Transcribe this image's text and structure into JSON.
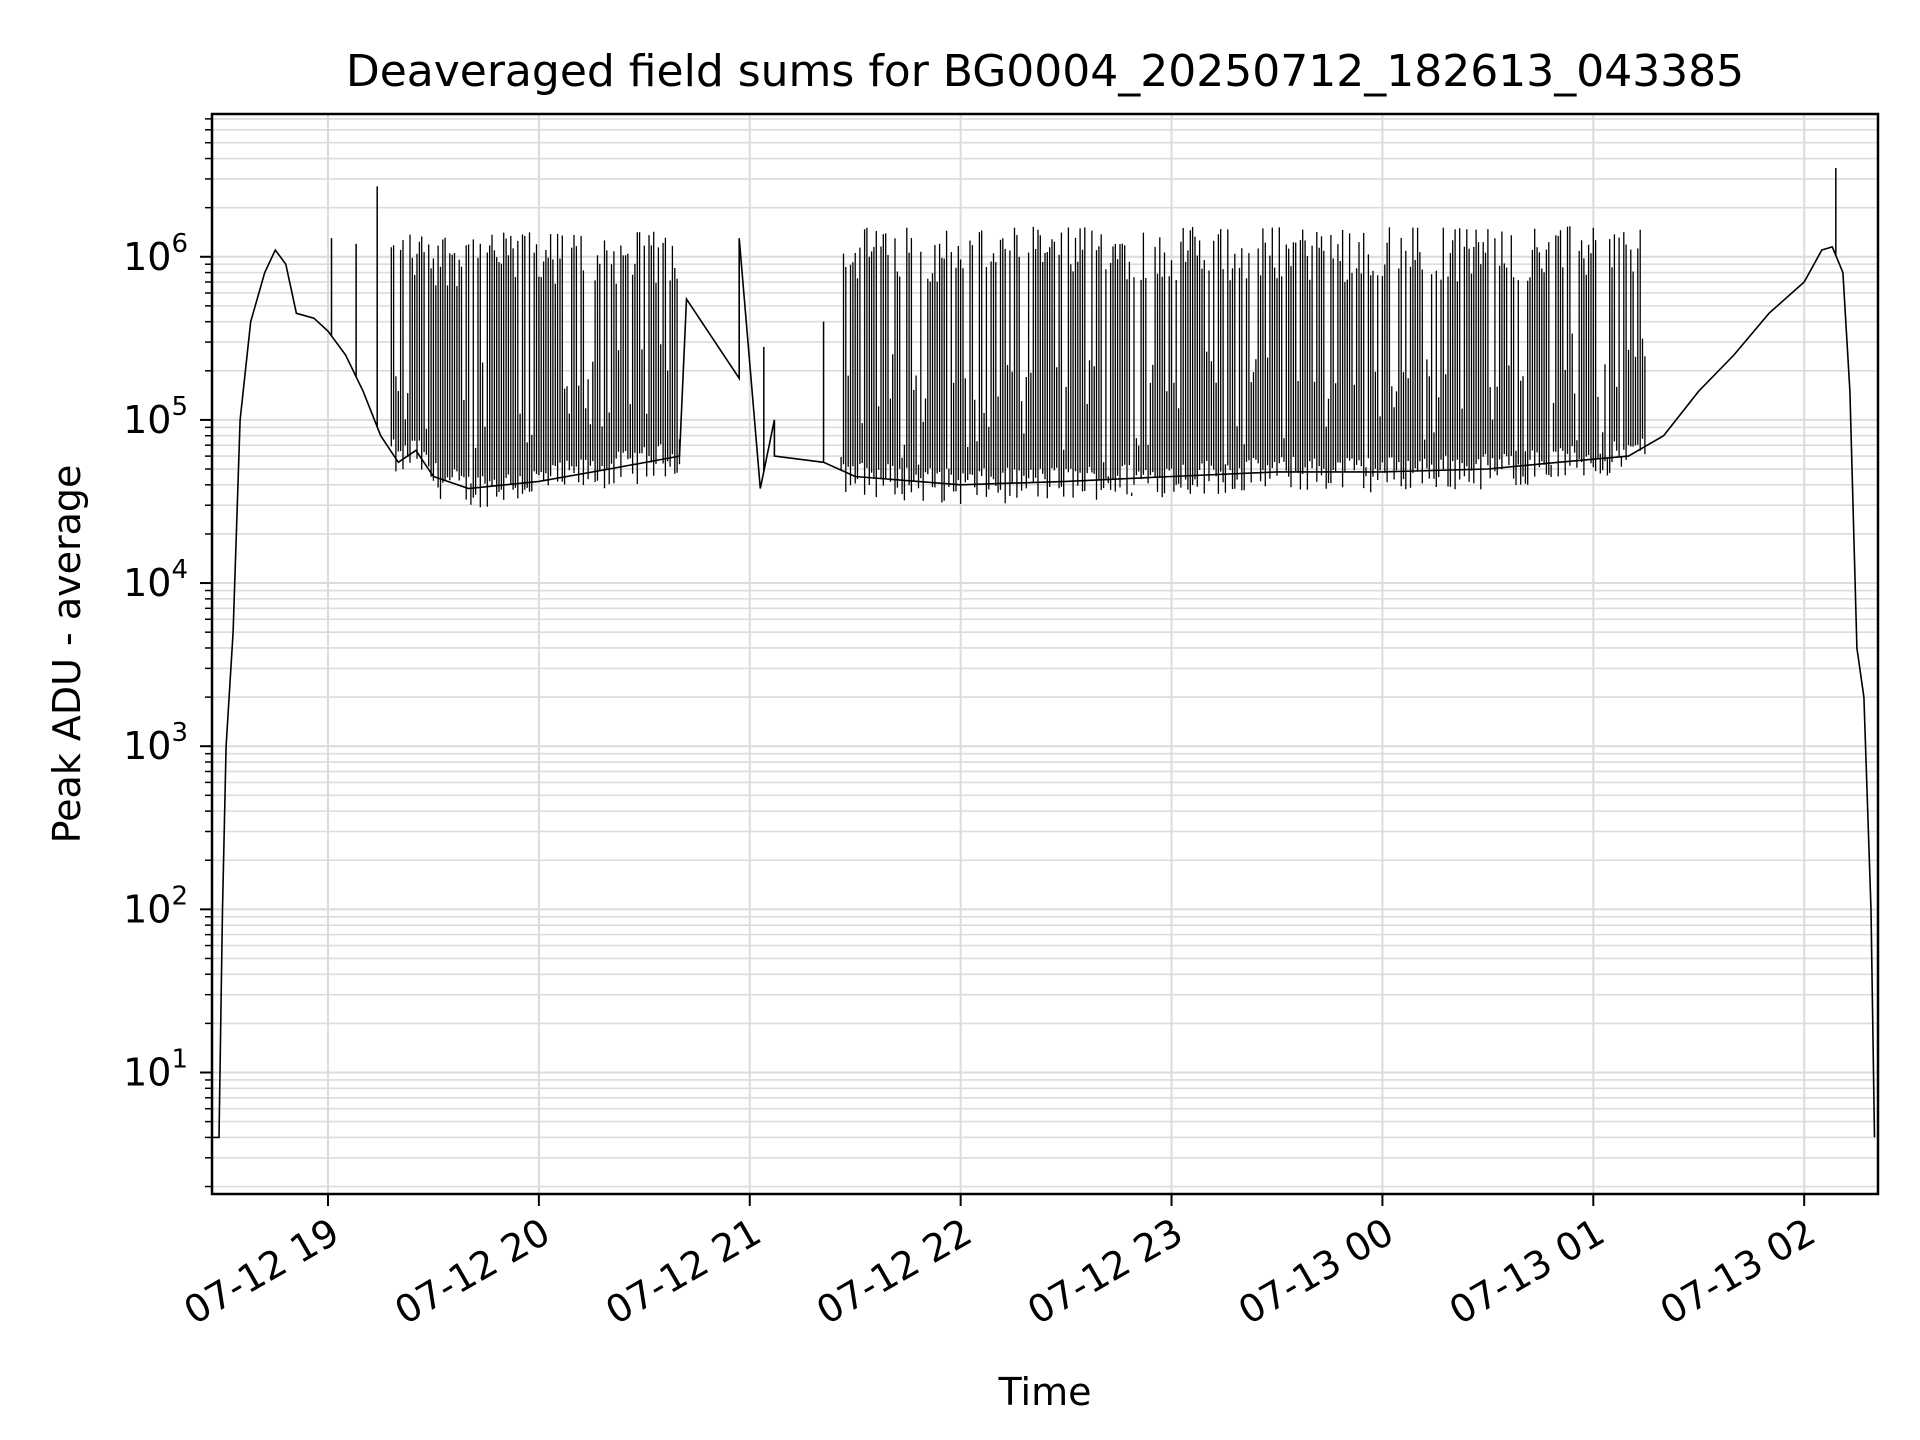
{
  "chart_data": {
    "type": "line",
    "title": "Deaveraged field sums for BG0004_20250712_182613_043385",
    "xlabel": "Time",
    "ylabel": "Peak ADU - average",
    "yscale": "log",
    "grid": true,
    "line_color": "#000000",
    "x_ticks": [
      "2025-07-12 19:00",
      "2025-07-12 20:00",
      "2025-07-12 21:00",
      "2025-07-12 22:00",
      "2025-07-12 23:00",
      "2025-07-13 00:00",
      "2025-07-13 01:00",
      "2025-07-13 02:00"
    ],
    "x_tick_labels": [
      "07-12 19",
      "07-12 20",
      "07-12 21",
      "07-12 22",
      "07-12 23",
      "07-13 00",
      "07-13 01",
      "07-13 02"
    ],
    "y_ticks": [
      {
        "base": "10",
        "exp": "1",
        "value": 10
      },
      {
        "base": "10",
        "exp": "2",
        "value": 100
      },
      {
        "base": "10",
        "exp": "3",
        "value": 1000
      },
      {
        "base": "10",
        "exp": "4",
        "value": 10000
      },
      {
        "base": "10",
        "exp": "5",
        "value": 100000
      },
      {
        "base": "10",
        "exp": "6",
        "value": 1000000
      }
    ],
    "xlim": [
      "2025-07-12 18:27",
      "2025-07-13 02:21"
    ],
    "ylim": [
      1.8,
      7500000
    ],
    "series": [
      {
        "baseline": [
          [
            "2025-07-12 18:27",
            4
          ],
          [
            "2025-07-12 18:29",
            4
          ],
          [
            "2025-07-12 18:30",
            100
          ],
          [
            "2025-07-12 18:31",
            1000
          ],
          [
            "2025-07-12 18:33",
            5000
          ],
          [
            "2025-07-12 18:35",
            100000
          ],
          [
            "2025-07-12 18:38",
            400000
          ],
          [
            "2025-07-12 18:42",
            800000
          ],
          [
            "2025-07-12 18:45",
            1100000
          ],
          [
            "2025-07-12 18:48",
            900000
          ],
          [
            "2025-07-12 18:51",
            450000
          ],
          [
            "2025-07-12 18:56",
            420000
          ],
          [
            "2025-07-12 19:00",
            350000
          ],
          [
            "2025-07-12 19:05",
            250000
          ],
          [
            "2025-07-12 19:10",
            150000
          ],
          [
            "2025-07-12 19:15",
            80000
          ],
          [
            "2025-07-12 19:20",
            55000
          ],
          [
            "2025-07-12 19:25",
            65000
          ],
          [
            "2025-07-12 19:30",
            45000
          ],
          [
            "2025-07-12 19:40",
            38000
          ],
          [
            "2025-07-12 20:00",
            42000
          ],
          [
            "2025-07-12 20:20",
            50000
          ],
          [
            "2025-07-12 20:40",
            60000
          ],
          [
            "2025-07-12 20:42",
            550000
          ],
          [
            "2025-07-12 20:57",
            180000
          ],
          [
            "2025-07-12 20:57",
            1300000
          ],
          [
            "2025-07-12 21:03",
            38000
          ],
          [
            "2025-07-12 21:07",
            100000
          ],
          [
            "2025-07-12 21:07",
            60000
          ],
          [
            "2025-07-12 21:21",
            55000
          ],
          [
            "2025-07-12 21:30",
            45000
          ],
          [
            "2025-07-12 22:00",
            40000
          ],
          [
            "2025-07-12 22:30",
            42000
          ],
          [
            "2025-07-12 23:00",
            45000
          ],
          [
            "2025-07-12 23:30",
            48000
          ],
          [
            "2025-07-13 00:00",
            48000
          ],
          [
            "2025-07-13 00:30",
            50000
          ],
          [
            "2025-07-13 00:50",
            55000
          ],
          [
            "2025-07-13 01:10",
            60000
          ],
          [
            "2025-07-13 01:20",
            80000
          ],
          [
            "2025-07-13 01:30",
            150000
          ],
          [
            "2025-07-13 01:40",
            250000
          ],
          [
            "2025-07-13 01:50",
            450000
          ],
          [
            "2025-07-13 02:00",
            700000
          ],
          [
            "2025-07-13 02:05",
            1100000
          ],
          [
            "2025-07-13 02:08",
            1150000
          ],
          [
            "2025-07-13 02:11",
            800000
          ],
          [
            "2025-07-13 02:13",
            150000
          ],
          [
            "2025-07-13 02:15",
            4000
          ],
          [
            "2025-07-13 02:17",
            2000
          ],
          [
            "2025-07-13 02:19",
            100
          ],
          [
            "2025-07-13 02:20",
            4
          ]
        ],
        "burst_segments": [
          {
            "from": "2025-07-12 19:18",
            "to": "2025-07-12 20:40",
            "peak": 1300000
          },
          {
            "from": "2025-07-12 21:26",
            "to": "2025-07-13 01:15",
            "peak": 1400000
          }
        ],
        "spikes": [
          [
            "2025-07-12 19:01",
            1300000
          ],
          [
            "2025-07-12 19:08",
            1200000
          ],
          [
            "2025-07-12 19:14",
            2700000
          ],
          [
            "2025-07-12 21:04",
            280000
          ],
          [
            "2025-07-12 21:21",
            400000
          ],
          [
            "2025-07-13 02:09",
            3500000
          ]
        ]
      }
    ]
  }
}
